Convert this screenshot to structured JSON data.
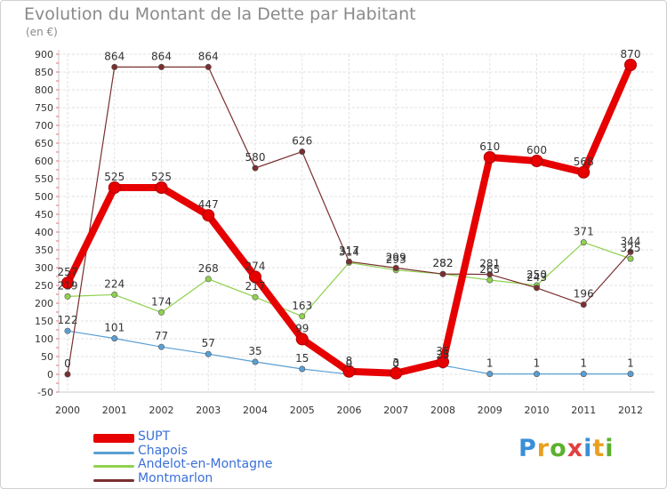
{
  "chart_data": {
    "type": "line",
    "title": "Evolution du Montant de la Dette par Habitant",
    "subtitle": "(en €)",
    "x": [
      "2000",
      "2001",
      "2002",
      "2003",
      "2004",
      "2005",
      "2006",
      "2007",
      "2008",
      "2009",
      "2010",
      "2011",
      "2012"
    ],
    "ylim": [
      -50,
      900
    ],
    "yticks": [
      -50,
      0,
      50,
      100,
      150,
      200,
      250,
      300,
      350,
      400,
      450,
      500,
      550,
      600,
      650,
      700,
      750,
      800,
      850,
      900
    ],
    "grid": true,
    "legend_position": "bottom-left",
    "series": [
      {
        "name": "SUPT",
        "color": "#e60000",
        "values": [
          257,
          525,
          525,
          447,
          274,
          99,
          8,
          3,
          35,
          610,
          600,
          568,
          870
        ],
        "labels": [
          "257",
          "525",
          "525",
          "447",
          "274",
          "99",
          "8",
          "3",
          "35",
          "610",
          "600",
          "568",
          "870"
        ]
      },
      {
        "name": "Chapois",
        "color": "#5a9fd4",
        "values": [
          122,
          101,
          77,
          57,
          35,
          15,
          0,
          0,
          25,
          1,
          1,
          1,
          1
        ],
        "labels": [
          "122",
          "101",
          "77",
          "57",
          "35",
          "15",
          "0",
          "0",
          "25",
          "1",
          "1",
          "1",
          "1"
        ]
      },
      {
        "name": "Andelot-en-Montagne",
        "color": "#8fd14f",
        "values": [
          219,
          224,
          174,
          268,
          217,
          163,
          314,
          293,
          282,
          265,
          250,
          371,
          325
        ],
        "labels": [
          "219",
          "224",
          "174",
          "268",
          "217",
          "163",
          "314",
          "293",
          "282",
          "265",
          "250",
          "371",
          "325"
        ]
      },
      {
        "name": "Montmarlon",
        "color": "#7a2f2f",
        "values": [
          0,
          864,
          864,
          864,
          580,
          626,
          317,
          299,
          282,
          281,
          243,
          196,
          344
        ],
        "labels": [
          "0",
          "864",
          "864",
          "864",
          "580",
          "626",
          "317",
          "299",
          "282",
          "281",
          "243",
          "196",
          "344"
        ]
      }
    ]
  },
  "logo": {
    "text": "Proxiti",
    "colors": [
      "#3a8fd8",
      "#e8a020",
      "#5cb030",
      "#e04040",
      "#3a8fd8",
      "#e8a020",
      "#5cb030"
    ]
  }
}
